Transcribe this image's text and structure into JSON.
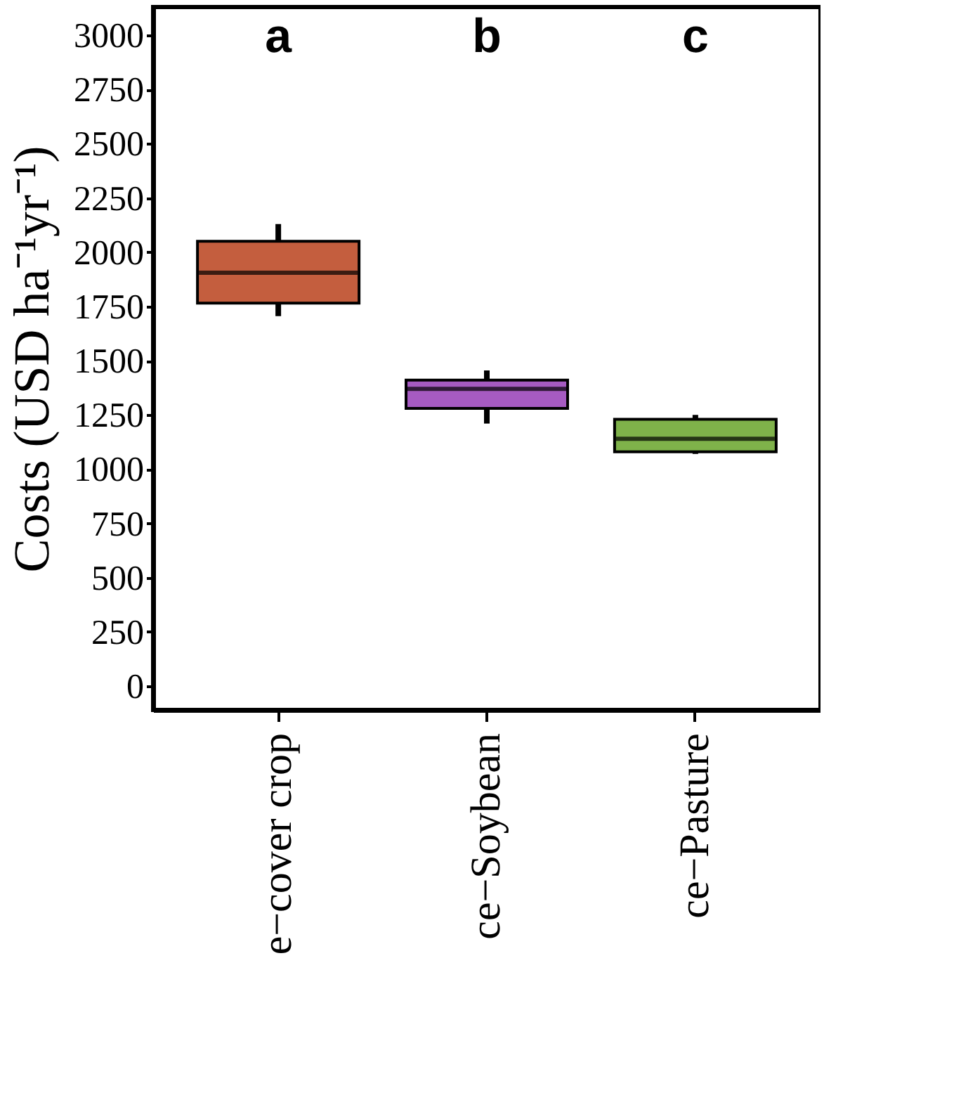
{
  "chart_data": {
    "type": "box",
    "ylabel": "Costs (USD ha⁻¹yr⁻¹)",
    "categories": [
      "e−cover crop",
      "ce−Soybean",
      "ce−Pasture"
    ],
    "series": [
      {
        "colors": [
          "#c45e3e",
          "#a65bc2",
          "#7fb24a"
        ],
        "boxes": [
          {
            "low": 1705,
            "q1": 1765,
            "median": 1905,
            "q3": 2050,
            "high": 2130
          },
          {
            "low": 1210,
            "q1": 1280,
            "median": 1370,
            "q3": 1410,
            "high": 1455
          },
          {
            "low": 1070,
            "q1": 1080,
            "median": 1140,
            "q3": 1230,
            "high": 1250
          }
        ]
      }
    ],
    "annotations": [
      "a",
      "b",
      "c"
    ],
    "ylim": [
      -110,
      3130
    ],
    "yticks": [
      0,
      250,
      500,
      750,
      1000,
      1250,
      1500,
      1750,
      2000,
      2250,
      2500,
      2750,
      3000
    ],
    "grid": false,
    "legend": false
  }
}
